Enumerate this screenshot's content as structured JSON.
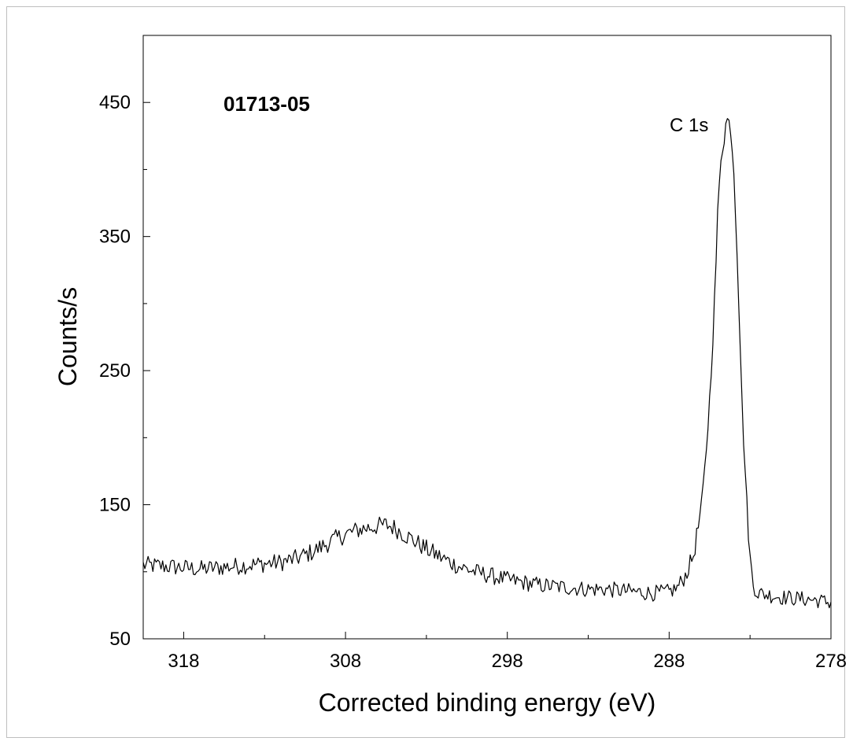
{
  "chart_data": {
    "type": "line",
    "title": "",
    "xlabel": "Corrected binding energy  (eV)",
    "ylabel": "Counts/s",
    "xlim": [
      320.5,
      278
    ],
    "ylim": [
      50,
      500
    ],
    "x_reversed": true,
    "x_ticks": [
      318,
      308,
      298,
      288,
      278
    ],
    "y_ticks": [
      50,
      150,
      250,
      350,
      450
    ],
    "grid": false,
    "legend": "none",
    "line_color": "#000000",
    "annotations": [
      {
        "text": "01713-05",
        "bold": true
      },
      {
        "text": "C 1s",
        "x": 284.8,
        "y": 425
      }
    ],
    "series": [
      {
        "x": [
          320.5,
          319,
          318,
          317,
          316,
          315,
          314,
          313,
          312,
          311,
          310,
          309,
          308,
          307.5,
          307,
          306,
          305.5,
          305,
          304,
          303,
          302,
          301,
          300,
          299,
          298,
          297,
          296,
          295,
          294,
          293,
          292,
          291,
          290,
          289,
          288,
          287.5,
          287,
          286.5,
          286,
          285.8,
          285.5,
          285.2,
          285,
          284.8,
          284.6,
          284.5,
          284.4,
          284.2,
          284,
          283.8,
          283.6,
          283.5,
          283.2,
          283,
          282.8,
          282.5,
          282,
          281.5,
          281,
          280,
          279,
          278
        ],
        "y": [
          105,
          104,
          103,
          102,
          103,
          104,
          105,
          106,
          107,
          110,
          115,
          122,
          128,
          130,
          132,
          134,
          135,
          133,
          125,
          117,
          110,
          104,
          100,
          97,
          94,
          92,
          90,
          89,
          88,
          87,
          87,
          86,
          85,
          84,
          85,
          88,
          97,
          112,
          148,
          175,
          228,
          300,
          365,
          410,
          425,
          433,
          437,
          432,
          400,
          340,
          268,
          225,
          150,
          110,
          90,
          84,
          83,
          82,
          81,
          80,
          79,
          77
        ]
      }
    ]
  }
}
